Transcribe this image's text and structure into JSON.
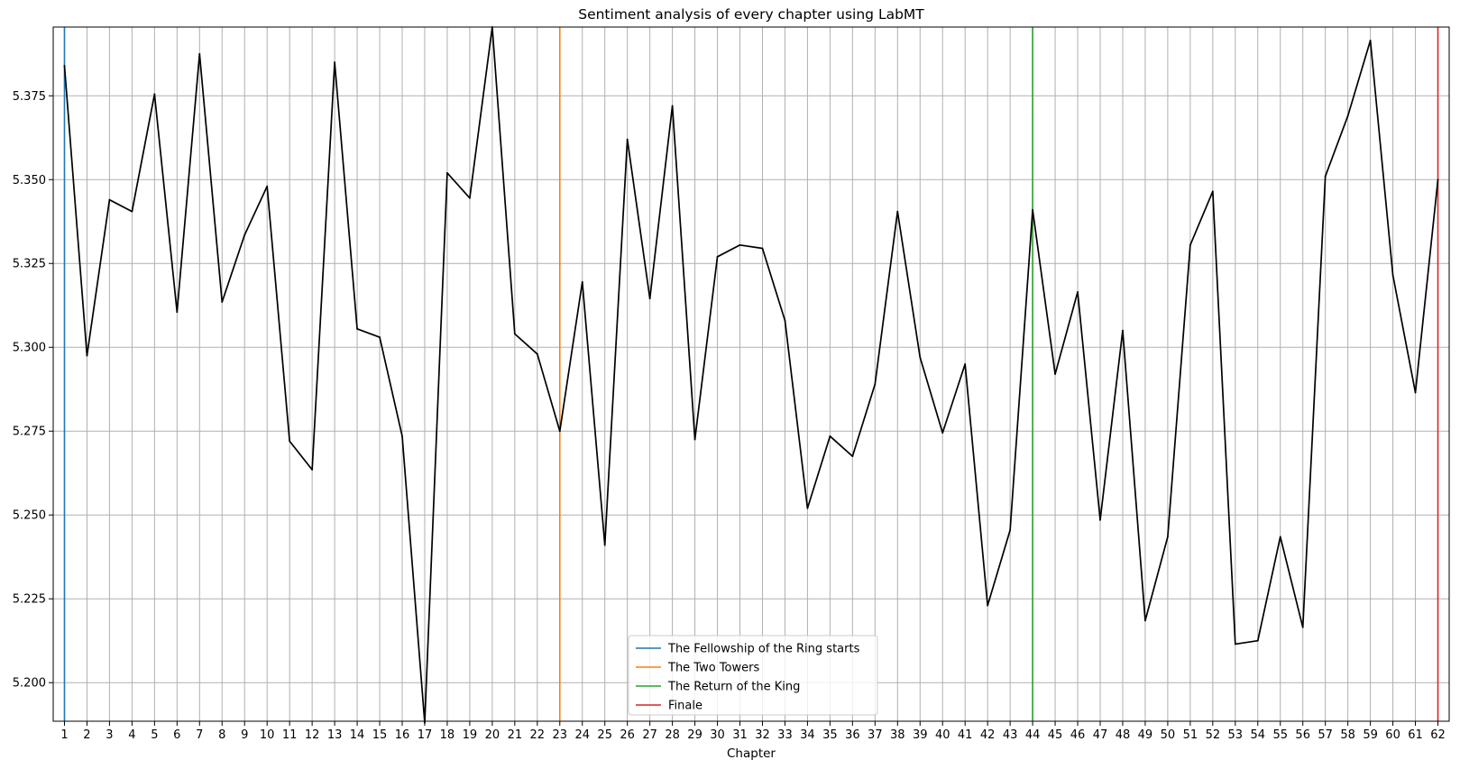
{
  "chart_data": {
    "type": "line",
    "title": "Sentiment analysis of every chapter using LabMT",
    "xlabel": "Chapter",
    "ylabel": "",
    "xlim": [
      0.5,
      62.5
    ],
    "ylim": [
      5.1885,
      5.3955
    ],
    "grid": true,
    "legend_position": "bottom-center",
    "y_ticks": [
      "5.200",
      "5.225",
      "5.250",
      "5.275",
      "5.300",
      "5.325",
      "5.350",
      "5.375"
    ],
    "series": [
      {
        "color": "#000000",
        "x": [
          1,
          2,
          3,
          4,
          5,
          6,
          7,
          8,
          9,
          10,
          11,
          12,
          13,
          14,
          15,
          16,
          17,
          18,
          19,
          20,
          21,
          22,
          23,
          24,
          25,
          26,
          27,
          28,
          29,
          30,
          31,
          32,
          33,
          34,
          35,
          36,
          37,
          38,
          39,
          40,
          41,
          42,
          43,
          44,
          45,
          46,
          47,
          48,
          49,
          50,
          51,
          52,
          53,
          54,
          55,
          56,
          57,
          58,
          59,
          60,
          61,
          62
        ],
        "y": [
          5.384,
          5.2975,
          5.344,
          5.3405,
          5.3755,
          5.3105,
          5.3875,
          5.3135,
          5.3335,
          5.348,
          5.272,
          5.2635,
          5.385,
          5.3055,
          5.303,
          5.2735,
          5.188,
          5.352,
          5.3445,
          5.3955,
          5.304,
          5.298,
          5.275,
          5.3195,
          5.241,
          5.362,
          5.3145,
          5.372,
          5.2725,
          5.327,
          5.3305,
          5.3295,
          5.308,
          5.252,
          5.2735,
          5.2675,
          5.289,
          5.3405,
          5.297,
          5.2745,
          5.295,
          5.223,
          5.2455,
          5.341,
          5.292,
          5.3165,
          5.2485,
          5.305,
          5.2185,
          5.2435,
          5.3305,
          5.3465,
          5.2115,
          5.2125,
          5.2435,
          5.2165,
          5.351,
          5.369,
          5.3915,
          5.3215,
          5.2865,
          5.35
        ]
      }
    ],
    "markers": [
      {
        "label": "The Fellowship of the Ring starts",
        "x": 1,
        "color": "#1f77b4"
      },
      {
        "label": "The Two Towers",
        "x": 23,
        "color": "#ff7f0e"
      },
      {
        "label": "The Return of the King",
        "x": 44,
        "color": "#2ca02c"
      },
      {
        "label": "Finale",
        "x": 62,
        "color": "#d62728"
      }
    ]
  }
}
